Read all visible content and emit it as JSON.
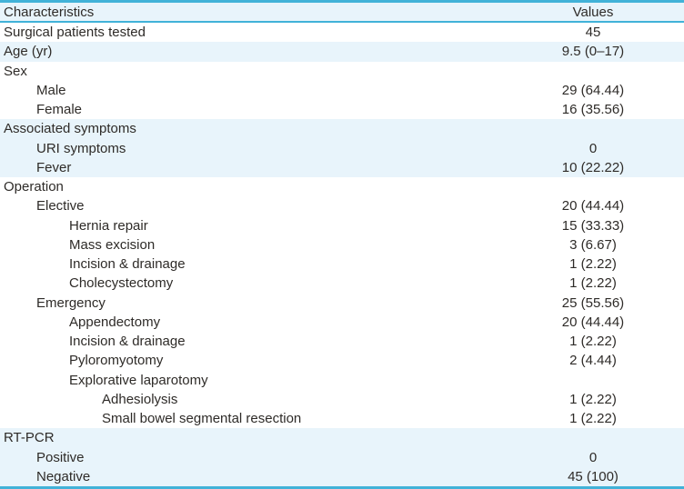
{
  "colors": {
    "accent": "#41b2d8",
    "row_shade": "#e8f4fb",
    "text": "#2e2b28",
    "background": "#ffffff"
  },
  "table": {
    "columns": [
      {
        "label": "Characteristics"
      },
      {
        "label": "Values"
      }
    ],
    "rows": [
      {
        "label": "Surgical patients tested",
        "value": "45",
        "indent": 0,
        "shaded": false
      },
      {
        "label": "Age (yr)",
        "value": "9.5 (0–17)",
        "indent": 0,
        "shaded": true
      },
      {
        "label": "Sex",
        "value": "",
        "indent": 0,
        "shaded": false
      },
      {
        "label": "Male",
        "value": "29 (64.44)",
        "indent": 1,
        "shaded": false
      },
      {
        "label": "Female",
        "value": "16 (35.56)",
        "indent": 1,
        "shaded": false
      },
      {
        "label": "Associated symptoms",
        "value": "",
        "indent": 0,
        "shaded": true
      },
      {
        "label": "URI symptoms",
        "value": "0",
        "indent": 1,
        "shaded": true
      },
      {
        "label": "Fever",
        "value": "10 (22.22)",
        "indent": 1,
        "shaded": true
      },
      {
        "label": "Operation",
        "value": "",
        "indent": 0,
        "shaded": false
      },
      {
        "label": "Elective",
        "value": "20 (44.44)",
        "indent": 1,
        "shaded": false
      },
      {
        "label": "Hernia repair",
        "value": "15 (33.33)",
        "indent": 2,
        "shaded": false
      },
      {
        "label": "Mass excision",
        "value": "3 (6.67)",
        "indent": 2,
        "shaded": false
      },
      {
        "label": "Incision & drainage",
        "value": "1 (2.22)",
        "indent": 2,
        "shaded": false
      },
      {
        "label": "Cholecystectomy",
        "value": "1 (2.22)",
        "indent": 2,
        "shaded": false
      },
      {
        "label": "Emergency",
        "value": "25 (55.56)",
        "indent": 1,
        "shaded": false
      },
      {
        "label": "Appendectomy",
        "value": "20 (44.44)",
        "indent": 2,
        "shaded": false
      },
      {
        "label": "Incision & drainage",
        "value": "1 (2.22)",
        "indent": 2,
        "shaded": false
      },
      {
        "label": "Pyloromyotomy",
        "value": "2 (4.44)",
        "indent": 2,
        "shaded": false
      },
      {
        "label": "Explorative laparotomy",
        "value": "",
        "indent": 2,
        "shaded": false
      },
      {
        "label": "Adhesiolysis",
        "value": "1 (2.22)",
        "indent": 3,
        "shaded": false
      },
      {
        "label": "Small bowel segmental resection",
        "value": "1 (2.22)",
        "indent": 3,
        "shaded": false
      },
      {
        "label": "RT-PCR",
        "value": "",
        "indent": 0,
        "shaded": true
      },
      {
        "label": "Positive",
        "value": "0",
        "indent": 1,
        "shaded": true
      },
      {
        "label": "Negative",
        "value": "45 (100)",
        "indent": 1,
        "shaded": true
      }
    ]
  }
}
